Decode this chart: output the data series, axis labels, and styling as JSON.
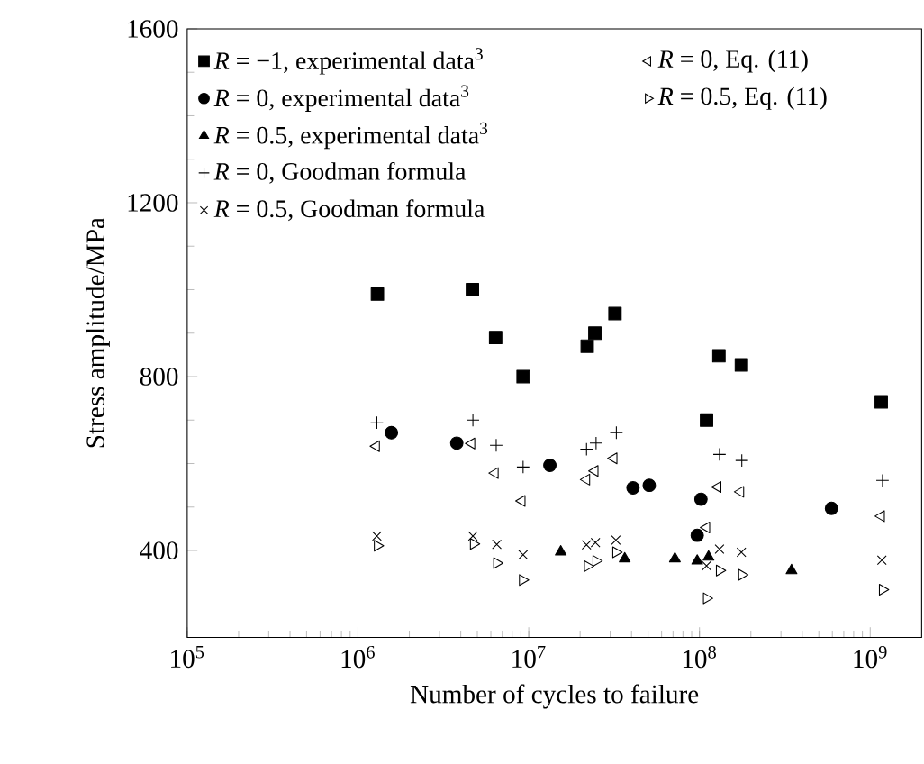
{
  "chart_data": {
    "type": "scatter",
    "xlabel": "Number of cycles to failure",
    "ylabel": "Stress amplitude/MPa",
    "log": "x",
    "xlim": [
      100000,
      2000000000
    ],
    "xticks": [
      {
        "value": 100000,
        "label": "10$^{5}$"
      },
      {
        "value": 1000000,
        "label": "10$^{6}$"
      },
      {
        "value": 10000000,
        "label": "10$^{7}$"
      },
      {
        "value": 100000000,
        "label": "10$^{8}$"
      },
      {
        "value": 1000000000,
        "label": "10$^{9}$"
      }
    ],
    "ylim": [
      200,
      1600
    ],
    "yticks": [
      400,
      800,
      1200,
      1600
    ],
    "grid": false,
    "legend": "top left",
    "series": [
      {
        "name": "*R* = −1, experimental data$^{3}$",
        "color": "#000000",
        "marker": "square",
        "x": [
          1300000,
          4680000,
          6400000,
          9270000,
          22000000,
          24400000,
          32000000,
          110000000,
          130000000,
          176000000,
          1160000000
        ],
        "values": [
          990,
          1000,
          890,
          800,
          870,
          900,
          945,
          700,
          848,
          827,
          742
        ]
      },
      {
        "name": "*R* = 0, experimental data$^{3}$",
        "color": "#000000",
        "marker": "circle",
        "x": [
          1570000,
          3790000,
          13300000,
          40800000,
          50800000,
          97000000,
          102000000,
          593000000
        ],
        "values": [
          671,
          647,
          596,
          544,
          550,
          435,
          518,
          497
        ]
      },
      {
        "name": "*R* = 0.5, experimental data$^{3}$",
        "color": "#000000",
        "marker": "triangle",
        "x": [
          15400000,
          36500000,
          71800000,
          97000000,
          113000000,
          346000000
        ],
        "values": [
          397,
          381,
          381,
          376,
          385,
          354
        ]
      },
      {
        "name": "*R* = 0, Goodman formula",
        "color": "#000000",
        "marker": "plus",
        "x": [
          1290000,
          4710000,
          6450000,
          9270000,
          21800000,
          24800000,
          32600000,
          131000000,
          177000000,
          1180000000
        ],
        "values": [
          694,
          700,
          642,
          592,
          633,
          647,
          671,
          621,
          607,
          561
        ]
      },
      {
        "name": "*R* = 0.5, Goodman formula",
        "color": "#000000",
        "marker": "cross",
        "x": [
          1290000,
          4710000,
          6500000,
          9270000,
          21800000,
          24600000,
          32400000,
          110000000,
          131000000,
          176000000,
          1170000000
        ],
        "values": [
          433,
          433,
          414,
          390,
          413,
          418,
          424,
          365,
          403,
          396,
          378
        ]
      },
      {
        "name": "*R* = 0, Eq. (11)",
        "color": "#000000",
        "marker": "triangle-left",
        "x": [
          1280000,
          4630000,
          6350000,
          9120000,
          21800000,
          24400000,
          31500000,
          110000000,
          128000000,
          174000000,
          1160000000
        ],
        "values": [
          640,
          646,
          578,
          514,
          563,
          583,
          612,
          453,
          546,
          535,
          479
        ]
      },
      {
        "name": "*R* = 0.5, Eq. (11)",
        "color": "#000000",
        "marker": "triangle-right",
        "x": [
          1300000,
          4750000,
          6500000,
          9200000,
          22100000,
          24800000,
          32400000,
          110000000,
          131000000,
          177000000,
          1180000000
        ],
        "values": [
          411,
          415,
          371,
          332,
          364,
          376,
          396,
          290,
          354,
          344,
          310
        ]
      }
    ]
  }
}
